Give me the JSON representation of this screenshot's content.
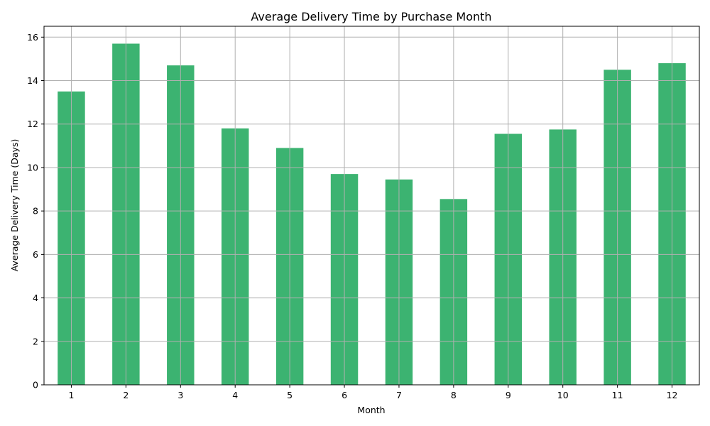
{
  "chart_data": {
    "type": "bar",
    "title": "Average Delivery Time by Purchase Month",
    "xlabel": "Month",
    "ylabel": "Average Delivery Time (Days)",
    "categories": [
      "1",
      "2",
      "3",
      "4",
      "5",
      "6",
      "7",
      "8",
      "9",
      "10",
      "11",
      "12"
    ],
    "values": [
      13.5,
      15.7,
      14.7,
      11.8,
      10.9,
      9.7,
      9.45,
      8.55,
      11.55,
      11.75,
      14.5,
      14.8
    ],
    "ylim": [
      0,
      16.5
    ],
    "yticks": [
      0,
      2,
      4,
      6,
      8,
      10,
      12,
      14,
      16
    ],
    "grid": true,
    "bar_color": "#3cb371"
  }
}
